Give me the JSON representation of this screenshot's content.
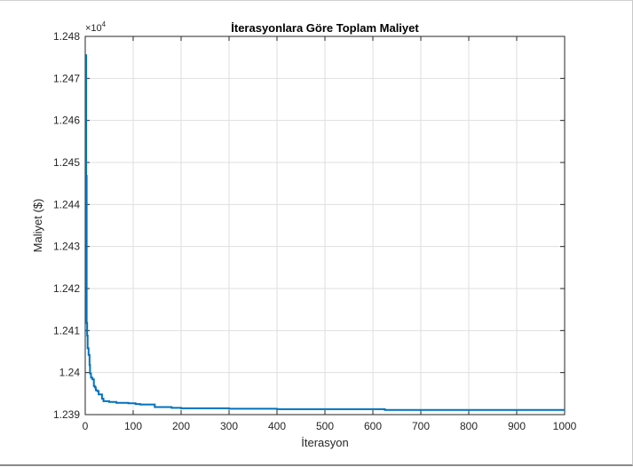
{
  "chart_data": {
    "type": "line",
    "title": "İterasyonlara Göre Toplam Maliyet",
    "xlabel": "İterasyon",
    "ylabel": "Maliyet ($)",
    "y_multiplier": "×10",
    "y_multiplier_exponent": "4",
    "xlim": [
      0,
      1000
    ],
    "ylim": [
      1.239,
      1.248
    ],
    "x_ticks": [
      0,
      100,
      200,
      300,
      400,
      500,
      600,
      700,
      800,
      900,
      1000
    ],
    "x_tick_labels": [
      "0",
      "100",
      "200",
      "300",
      "400",
      "500",
      "600",
      "700",
      "800",
      "900",
      "1000"
    ],
    "y_ticks": [
      1.239,
      1.24,
      1.241,
      1.242,
      1.243,
      1.244,
      1.245,
      1.246,
      1.247,
      1.248
    ],
    "y_tick_labels": [
      "1.239",
      "1.24",
      "1.241",
      "1.242",
      "1.243",
      "1.244",
      "1.245",
      "1.246",
      "1.247",
      "1.248"
    ],
    "grid": true,
    "line_color": "#0072BD",
    "series": [
      {
        "x": [
          1,
          2,
          3,
          4,
          5,
          7,
          9,
          10,
          12,
          15,
          18,
          20,
          22,
          25,
          28,
          30,
          35,
          38,
          40,
          50,
          60,
          65,
          70,
          80,
          90,
          100,
          105,
          110,
          115,
          140,
          145,
          170,
          180,
          200,
          300,
          400,
          500,
          620,
          625,
          700,
          800,
          900,
          1000
        ],
        "y": [
          1.24755,
          1.24468,
          1.24118,
          1.24088,
          1.24058,
          1.24042,
          1.24018,
          1.23998,
          1.23988,
          1.23984,
          1.23968,
          1.23965,
          1.23958,
          1.23956,
          1.23948,
          1.23948,
          1.23938,
          1.23932,
          1.23932,
          1.2393,
          1.2393,
          1.23928,
          1.23928,
          1.23928,
          1.23927,
          1.23927,
          1.23925,
          1.23925,
          1.23924,
          1.23924,
          1.23918,
          1.23918,
          1.23916,
          1.23915,
          1.23914,
          1.23913,
          1.23913,
          1.23913,
          1.23911,
          1.23911,
          1.23911,
          1.23911,
          1.23911
        ]
      }
    ]
  }
}
